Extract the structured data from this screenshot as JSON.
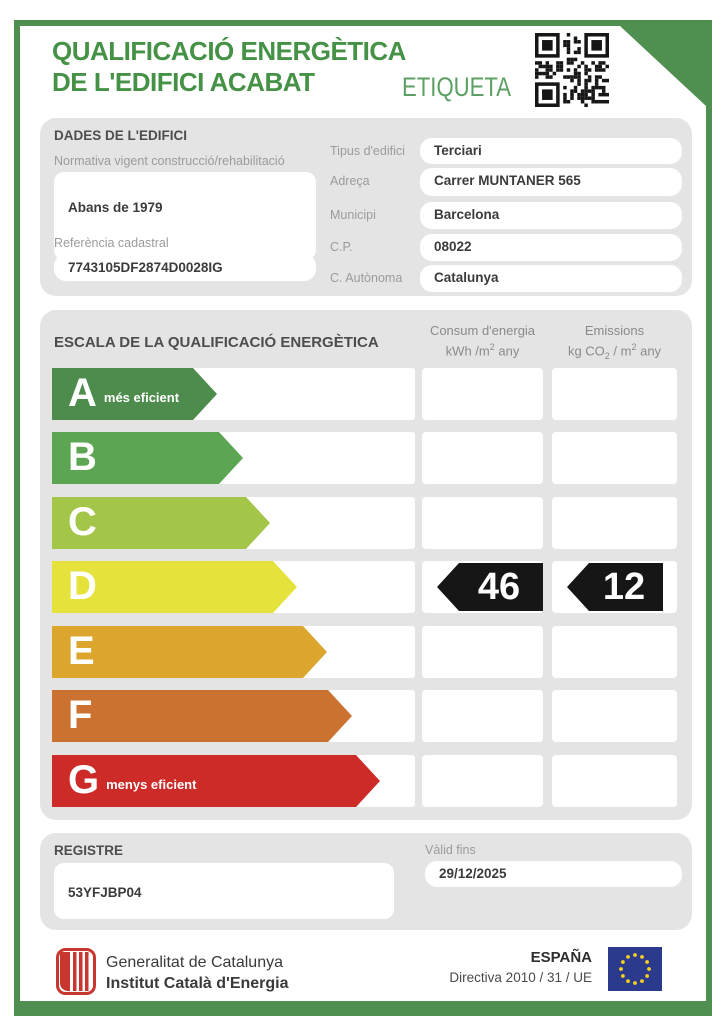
{
  "header": {
    "title_line1": "QUALIFICACIÓ ENERGÈTICA",
    "title_line2": "DE L'EDIFICI ACABAT",
    "etiqueta": "ETIQUETA"
  },
  "building": {
    "heading": "DADES DE L'EDIFICI",
    "normativa_label": "Normativa vigent construcció/rehabilitació",
    "normativa_value": "Abans de 1979",
    "cadastral_label": "Referència cadastral",
    "cadastral_value": "7743105DF2874D0028IG",
    "fields": [
      {
        "label": "Tipus d'edifici",
        "value": "Terciari"
      },
      {
        "label": "Adreça",
        "value": "Carrer MUNTANER 565"
      },
      {
        "label": "Municipi",
        "value": "Barcelona"
      },
      {
        "label": "C.P.",
        "value": "08022"
      },
      {
        "label": "C. Autònoma",
        "value": "Catalunya"
      }
    ]
  },
  "scale": {
    "heading": "ESCALA DE LA QUALIFICACIÓ ENERGÈTICA",
    "col1": {
      "title": "Consum d'energia",
      "unit_a": "kWh /m",
      "unit_sup": "2",
      "unit_b": " any"
    },
    "col2": {
      "title": "Emissions",
      "unit_a": "kg CO",
      "unit_sub": "2",
      "unit_b": " / m",
      "unit_sup": "2",
      "unit_c": " any"
    },
    "rows": [
      {
        "letter": "A",
        "note": "més eficient",
        "color": "#4d8c4d"
      },
      {
        "letter": "B",
        "color": "#5ca553"
      },
      {
        "letter": "C",
        "color": "#a3c548"
      },
      {
        "letter": "D",
        "color": "#e6e23c"
      },
      {
        "letter": "E",
        "color": "#dca62e"
      },
      {
        "letter": "F",
        "color": "#cc7231"
      },
      {
        "letter": "G",
        "note": "menys eficient",
        "color": "#cd2b28"
      }
    ],
    "rating": {
      "letter": "D",
      "consum_value": "46",
      "emissions_value": "12"
    }
  },
  "registry": {
    "heading": "REGISTRE",
    "code": "53YFJBP04",
    "valid_label": "Vàlid fins",
    "valid_value": "29/12/2025"
  },
  "footer": {
    "org_line1": "Generalitat de Catalunya",
    "org_line2": "Institut Català d'Energia",
    "country": "ESPAÑA",
    "directive": "Directiva 2010 / 31 / UE"
  },
  "colors": {
    "frame_green": "#4f8f4f",
    "title_green": "#459247",
    "etiqueta_green": "#5c9f62",
    "panel_gray": "#e4e4e4",
    "marker_black": "#161616",
    "eu_flag_blue": "#2b3a8c",
    "eu_star_yellow": "#f5d020",
    "senyera_red": "#c8372f"
  }
}
